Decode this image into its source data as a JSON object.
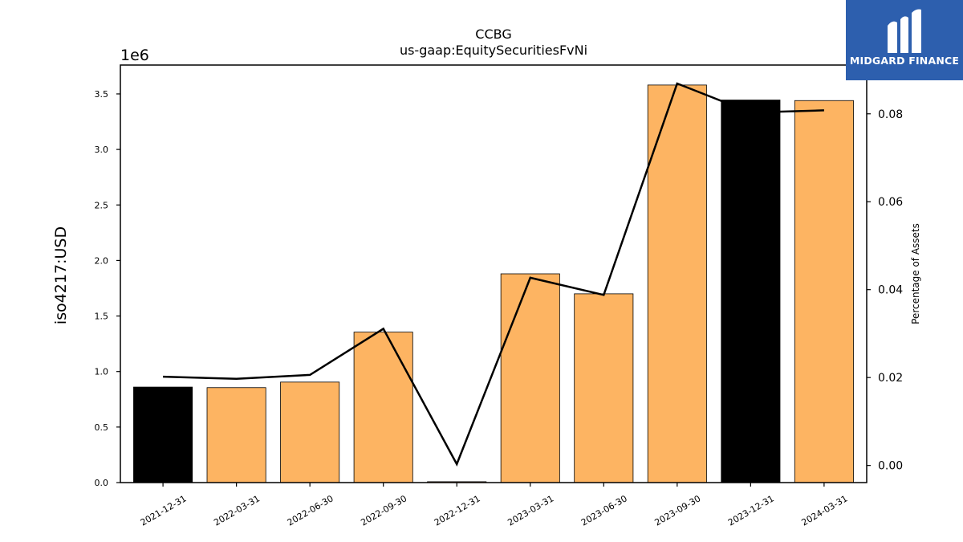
{
  "chart_data": {
    "type": "bar",
    "title": "CCBG",
    "subtitle": "us-gaap:EquitySecuritiesFvNi",
    "ylabel": "iso4217:USD",
    "y2label": "Percentage of Assets",
    "y_multiplier_label": "1e6",
    "categories": [
      "2021-12-31",
      "2022-03-31",
      "2022-06-30",
      "2022-09-30",
      "2022-12-31",
      "2023-03-31",
      "2023-06-30",
      "2023-09-30",
      "2023-12-31",
      "2024-03-31"
    ],
    "series": [
      {
        "values": [
          860000,
          855000,
          905000,
          1355000,
          8000,
          1880000,
          1700000,
          3580000,
          3445000,
          3440000
        ],
        "colors": [
          "#000000",
          "#fdb462",
          "#fdb462",
          "#fdb462",
          "#fdb462",
          "#fdb462",
          "#fdb462",
          "#fdb462",
          "#000000",
          "#fdb462"
        ]
      },
      {
        "type": "line",
        "axis": "right",
        "values": [
          0.0202,
          0.0197,
          0.0206,
          0.0311,
          0.0003,
          0.0427,
          0.0388,
          0.0869,
          0.0803,
          0.0808
        ],
        "color": "#000000"
      }
    ],
    "ylim": [
      0,
      3760000
    ],
    "y_ticks": [
      "0.0",
      "0.5",
      "1.0",
      "1.5",
      "2.0",
      "2.5",
      "3.0",
      "3.5"
    ],
    "y2lim": [
      -0.0039,
      0.0911
    ],
    "y2_ticks": [
      "0.00",
      "0.02",
      "0.04",
      "0.06",
      "0.08"
    ],
    "bar_color": "#fdb462",
    "highlight_color": "#000000",
    "grid": false,
    "legend": "none"
  },
  "logo": {
    "text": "MIDGARD FINANCE"
  }
}
